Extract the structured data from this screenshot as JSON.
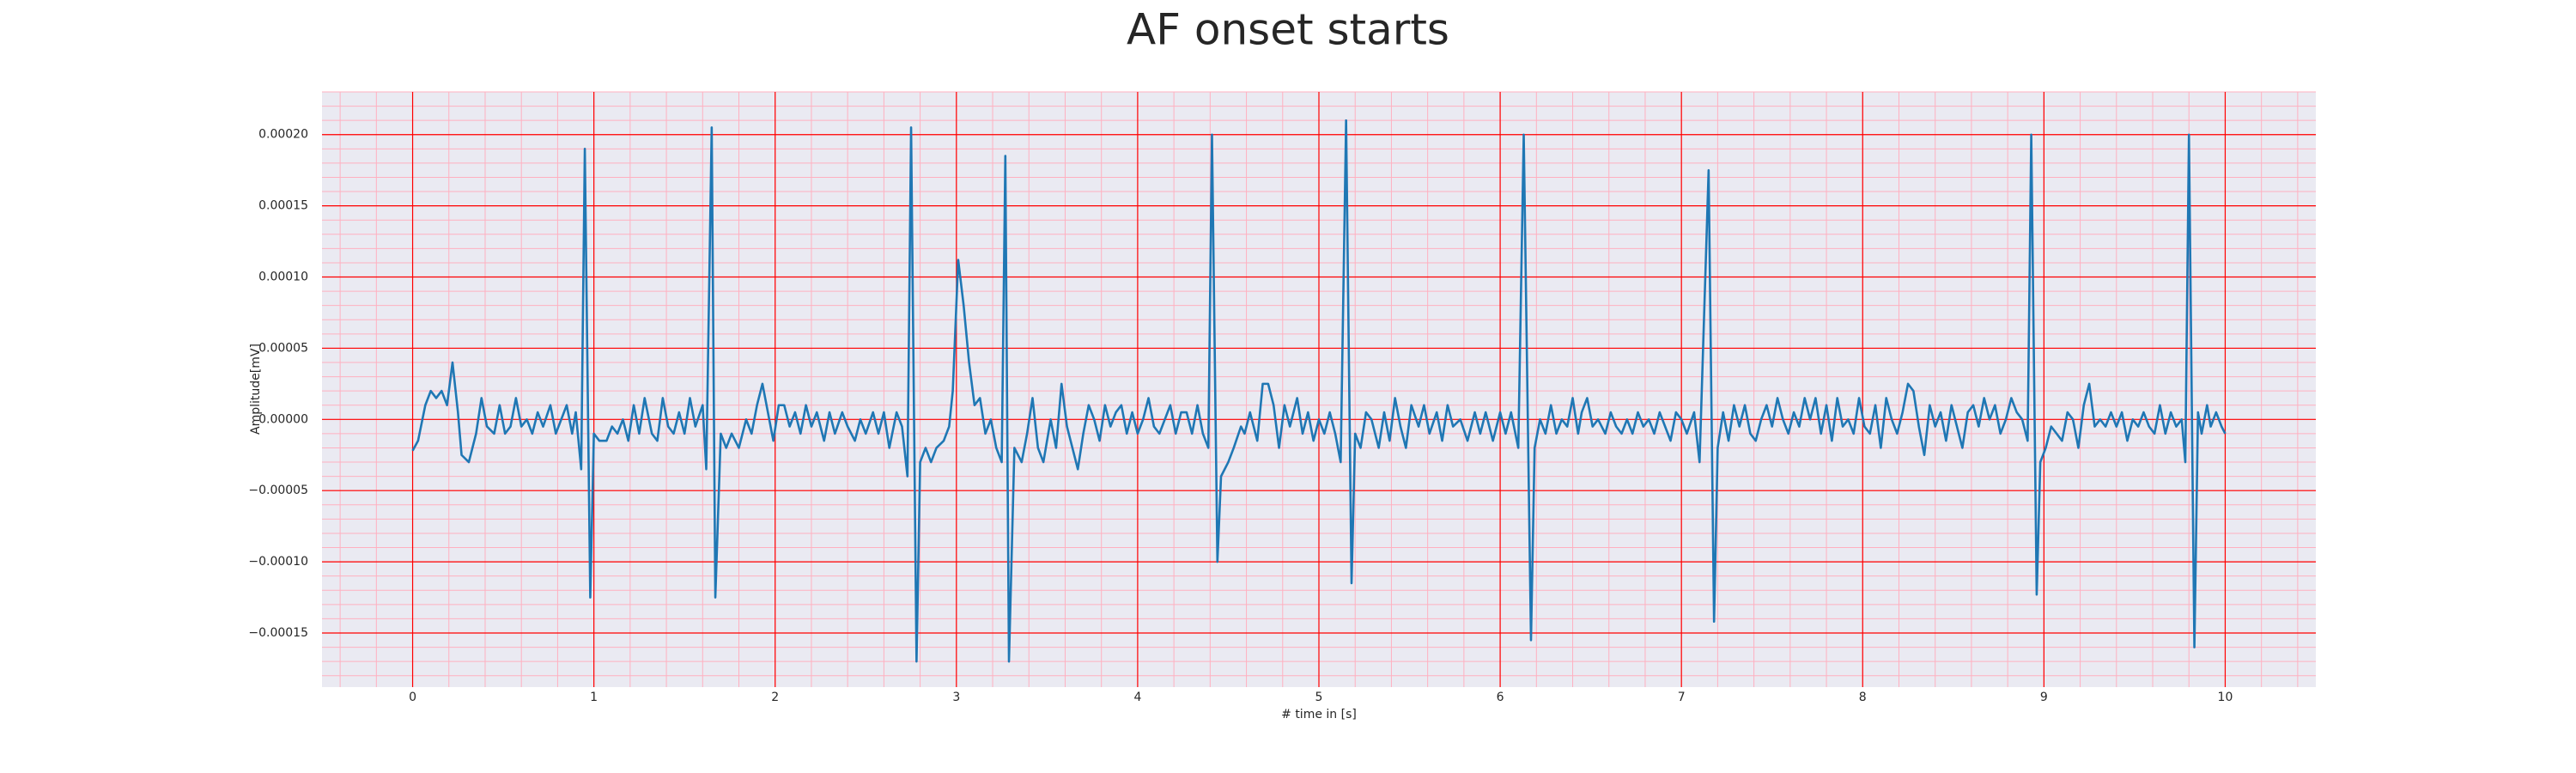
{
  "chart_data": {
    "type": "line",
    "title": "AF onset starts",
    "xlabel": "# time in [s]",
    "ylabel": "Amplitude[mV]",
    "background": "#eaeaf2",
    "grid": true,
    "grid_color": "#ff0000",
    "minor_grid_color": "#ffb0c0",
    "minor_xstep": 0.2,
    "minor_ystep": 1e-05,
    "xlim": [
      -0.5,
      10.5
    ],
    "xticks": [
      0,
      1,
      2,
      3,
      4,
      5,
      6,
      7,
      8,
      9,
      10
    ],
    "ylim": [
      -0.000188,
      0.00023
    ],
    "yticks": [
      {
        "value": -0.00015,
        "label": "−0.00015"
      },
      {
        "value": -0.0001,
        "label": "−0.00010"
      },
      {
        "value": -5e-05,
        "label": "−0.00005"
      },
      {
        "value": 0,
        "label": "0.00000"
      },
      {
        "value": 5e-05,
        "label": "0.00005"
      },
      {
        "value": 0.0001,
        "label": "0.00010"
      },
      {
        "value": 0.00015,
        "label": "0.00015"
      },
      {
        "value": 0.0002,
        "label": "0.00020"
      }
    ],
    "x": [
      0.0,
      0.03,
      0.07,
      0.1,
      0.13,
      0.16,
      0.19,
      0.22,
      0.25,
      0.27,
      0.31,
      0.35,
      0.38,
      0.41,
      0.45,
      0.48,
      0.51,
      0.54,
      0.57,
      0.6,
      0.63,
      0.66,
      0.69,
      0.72,
      0.76,
      0.79,
      0.82,
      0.85,
      0.88,
      0.9,
      0.93,
      0.95,
      0.98,
      1.0,
      1.03,
      1.07,
      1.1,
      1.13,
      1.16,
      1.19,
      1.22,
      1.25,
      1.28,
      1.32,
      1.35,
      1.38,
      1.41,
      1.44,
      1.47,
      1.5,
      1.53,
      1.56,
      1.6,
      1.62,
      1.65,
      1.67,
      1.7,
      1.73,
      1.76,
      1.8,
      1.84,
      1.87,
      1.9,
      1.93,
      1.96,
      1.99,
      2.02,
      2.05,
      2.08,
      2.11,
      2.14,
      2.17,
      2.2,
      2.23,
      2.27,
      2.3,
      2.33,
      2.37,
      2.4,
      2.44,
      2.47,
      2.5,
      2.54,
      2.57,
      2.6,
      2.63,
      2.67,
      2.7,
      2.73,
      2.75,
      2.78,
      2.8,
      2.83,
      2.86,
      2.89,
      2.93,
      2.96,
      2.98,
      3.01,
      3.04,
      3.07,
      3.1,
      3.13,
      3.16,
      3.19,
      3.22,
      3.25,
      3.27,
      3.29,
      3.32,
      3.36,
      3.39,
      3.42,
      3.45,
      3.48,
      3.52,
      3.55,
      3.58,
      3.61,
      3.64,
      3.67,
      3.7,
      3.73,
      3.76,
      3.79,
      3.82,
      3.85,
      3.88,
      3.91,
      3.94,
      3.97,
      4.0,
      4.03,
      4.06,
      4.09,
      4.12,
      4.15,
      4.18,
      4.21,
      4.24,
      4.27,
      4.3,
      4.33,
      4.36,
      4.39,
      4.41,
      4.44,
      4.46,
      4.5,
      4.53,
      4.57,
      4.59,
      4.62,
      4.66,
      4.69,
      4.72,
      4.75,
      4.78,
      4.81,
      4.84,
      4.88,
      4.91,
      4.94,
      4.97,
      5.0,
      5.03,
      5.06,
      5.09,
      5.12,
      5.15,
      5.18,
      5.2,
      5.23,
      5.26,
      5.29,
      5.33,
      5.36,
      5.39,
      5.42,
      5.45,
      5.48,
      5.51,
      5.55,
      5.58,
      5.61,
      5.65,
      5.68,
      5.71,
      5.74,
      5.78,
      5.82,
      5.86,
      5.89,
      5.92,
      5.96,
      6.0,
      6.03,
      6.06,
      6.1,
      6.13,
      6.17,
      6.19,
      6.22,
      6.25,
      6.28,
      6.31,
      6.34,
      6.37,
      6.4,
      6.43,
      6.45,
      6.48,
      6.51,
      6.54,
      6.58,
      6.61,
      6.64,
      6.67,
      6.7,
      6.73,
      6.76,
      6.79,
      6.82,
      6.85,
      6.88,
      6.91,
      6.94,
      6.97,
      7.0,
      7.03,
      7.07,
      7.1,
      7.15,
      7.18,
      7.2,
      7.23,
      7.26,
      7.29,
      7.32,
      7.35,
      7.38,
      7.41,
      7.44,
      7.47,
      7.5,
      7.53,
      7.56,
      7.59,
      7.62,
      7.65,
      7.68,
      7.71,
      7.74,
      7.77,
      7.8,
      7.83,
      7.86,
      7.89,
      7.92,
      7.95,
      7.98,
      8.01,
      8.04,
      8.07,
      8.1,
      8.13,
      8.16,
      8.19,
      8.22,
      8.25,
      8.28,
      8.31,
      8.34,
      8.37,
      8.4,
      8.43,
      8.46,
      8.49,
      8.52,
      8.55,
      8.58,
      8.61,
      8.64,
      8.67,
      8.7,
      8.73,
      8.76,
      8.79,
      8.82,
      8.85,
      8.88,
      8.91,
      8.93,
      8.96,
      8.98,
      9.01,
      9.04,
      9.07,
      9.1,
      9.13,
      9.16,
      9.19,
      9.22,
      9.25,
      9.28,
      9.31,
      9.34,
      9.37,
      9.4,
      9.43,
      9.46,
      9.49,
      9.52,
      9.55,
      9.58,
      9.61,
      9.64,
      9.67,
      9.7,
      9.73,
      9.76,
      9.78,
      9.8,
      9.83,
      9.85,
      9.87,
      9.9,
      9.92,
      9.95,
      9.98,
      10.0
    ],
    "series": [
      {
        "color": "#1f77b4",
        "values": [
          -2.2e-05,
          -1.5e-05,
          1e-05,
          2e-05,
          1.5e-05,
          2e-05,
          1e-05,
          4e-05,
          5e-06,
          -2.5e-05,
          -3e-05,
          -1e-05,
          1.5e-05,
          -5e-06,
          -1e-05,
          1e-05,
          -1e-05,
          -5e-06,
          1.5e-05,
          -5e-06,
          0,
          -1e-05,
          5e-06,
          -5e-06,
          1e-05,
          -1e-05,
          0,
          1e-05,
          -1e-05,
          5e-06,
          -3.5e-05,
          0.00019,
          -0.000125,
          -1e-05,
          -1.5e-05,
          -1.5e-05,
          -5e-06,
          -1e-05,
          0,
          -1.5e-05,
          1e-05,
          -1e-05,
          1.5e-05,
          -1e-05,
          -1.5e-05,
          1.5e-05,
          -5e-06,
          -1e-05,
          5e-06,
          -1e-05,
          1.5e-05,
          -5e-06,
          1e-05,
          -3.5e-05,
          0.000205,
          -0.000125,
          -1e-05,
          -2e-05,
          -1e-05,
          -2e-05,
          0,
          -1e-05,
          1e-05,
          2.5e-05,
          5e-06,
          -1.5e-05,
          1e-05,
          1e-05,
          -5e-06,
          5e-06,
          -1e-05,
          1e-05,
          -5e-06,
          5e-06,
          -1.5e-05,
          5e-06,
          -1e-05,
          5e-06,
          -5e-06,
          -1.5e-05,
          0,
          -1e-05,
          5e-06,
          -1e-05,
          5e-06,
          -2e-05,
          5e-06,
          -5e-06,
          -4e-05,
          0.000205,
          -0.00017,
          -3e-05,
          -2e-05,
          -3e-05,
          -2e-05,
          -1.5e-05,
          -5e-06,
          2e-05,
          0.000112,
          8e-05,
          4e-05,
          1e-05,
          1.5e-05,
          -1e-05,
          0,
          -2e-05,
          -3e-05,
          0.000185,
          -0.00017,
          -2e-05,
          -3e-05,
          -1e-05,
          1.5e-05,
          -2e-05,
          -3e-05,
          0,
          -2e-05,
          2.5e-05,
          -5e-06,
          -2e-05,
          -3.5e-05,
          -1e-05,
          1e-05,
          0,
          -1.5e-05,
          1e-05,
          -5e-06,
          5e-06,
          1e-05,
          -1e-05,
          5e-06,
          -1e-05,
          0,
          1.5e-05,
          -5e-06,
          -1e-05,
          0,
          1e-05,
          -1e-05,
          5e-06,
          5e-06,
          -1e-05,
          1e-05,
          -1e-05,
          -2e-05,
          0.0002,
          -0.0001,
          -4e-05,
          -3e-05,
          -2e-05,
          -5e-06,
          -1e-05,
          5e-06,
          -1.5e-05,
          2.5e-05,
          2.5e-05,
          1e-05,
          -2e-05,
          1e-05,
          -5e-06,
          1.5e-05,
          -1e-05,
          5e-06,
          -1.5e-05,
          0,
          -1e-05,
          5e-06,
          -1e-05,
          -3e-05,
          0.00021,
          -0.000115,
          -1e-05,
          -2e-05,
          5e-06,
          0,
          -2e-05,
          5e-06,
          -1.5e-05,
          1.5e-05,
          -5e-06,
          -2e-05,
          1e-05,
          -5e-06,
          1e-05,
          -1e-05,
          5e-06,
          -1.5e-05,
          1e-05,
          -5e-06,
          0,
          -1.5e-05,
          5e-06,
          -1e-05,
          5e-06,
          -1.5e-05,
          5e-06,
          -1e-05,
          5e-06,
          -2e-05,
          0.0002,
          -0.000155,
          -2e-05,
          0,
          -1e-05,
          1e-05,
          -1e-05,
          0,
          -5e-06,
          1.5e-05,
          -1e-05,
          5e-06,
          1.5e-05,
          -5e-06,
          0,
          -1e-05,
          5e-06,
          -5e-06,
          -1e-05,
          0,
          -1e-05,
          5e-06,
          -5e-06,
          0,
          -1e-05,
          5e-06,
          -5e-06,
          -1.5e-05,
          5e-06,
          0,
          -1e-05,
          5e-06,
          -3e-05,
          0.000175,
          -0.000142,
          -2e-05,
          5e-06,
          -1.5e-05,
          1e-05,
          -5e-06,
          1e-05,
          -1e-05,
          -1.5e-05,
          0,
          1e-05,
          -5e-06,
          1.5e-05,
          0,
          -1e-05,
          5e-06,
          -5e-06,
          1.5e-05,
          0,
          1.5e-05,
          -1e-05,
          1e-05,
          -1.5e-05,
          1.5e-05,
          -5e-06,
          0,
          -1e-05,
          1.5e-05,
          -5e-06,
          -1e-05,
          1e-05,
          -2e-05,
          1.5e-05,
          0,
          -1e-05,
          5e-06,
          2.5e-05,
          2e-05,
          -5e-06,
          -2.5e-05,
          1e-05,
          -5e-06,
          5e-06,
          -1.5e-05,
          1e-05,
          -5e-06,
          -2e-05,
          5e-06,
          1e-05,
          -5e-06,
          1.5e-05,
          0,
          1e-05,
          -1e-05,
          0,
          1.5e-05,
          5e-06,
          0,
          -1.5e-05,
          0.0002,
          -0.000123,
          -3e-05,
          -2e-05,
          -5e-06,
          -1e-05,
          -1.5e-05,
          5e-06,
          0,
          -2e-05,
          1e-05,
          2.5e-05,
          -5e-06,
          0,
          -5e-06,
          5e-06,
          -5e-06,
          5e-06,
          -1.5e-05,
          0,
          -5e-06,
          5e-06,
          -5e-06,
          -1e-05,
          1e-05,
          -1e-05,
          5e-06,
          -5e-06,
          0,
          -3e-05,
          0.0002,
          -0.00016,
          5e-06,
          -1e-05,
          1e-05,
          -5e-06,
          5e-06,
          -5e-06,
          -1e-05
        ]
      }
    ]
  }
}
